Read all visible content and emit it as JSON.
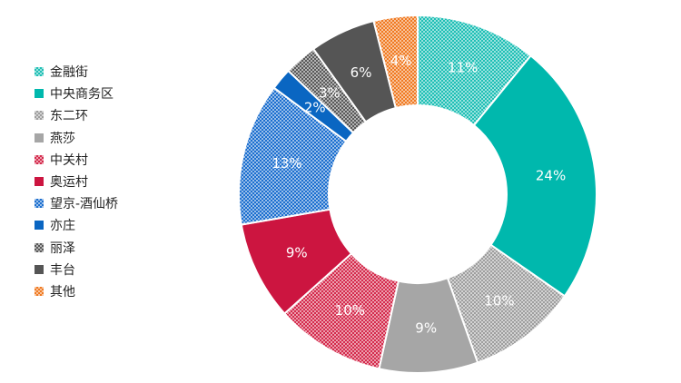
{
  "chart_data": {
    "type": "pie",
    "donut": true,
    "legend_position": "left",
    "categories": [
      "金融街",
      "中央商务区",
      "东二环",
      "燕莎",
      "中关村",
      "奥运村",
      "望京-酒仙桥",
      "亦庄",
      "丽泽",
      "丰台",
      "其他"
    ],
    "values": [
      11,
      24,
      10,
      9,
      10,
      9,
      13,
      2,
      3,
      6,
      4
    ],
    "labels": [
      "11%",
      "24%",
      "10%",
      "9%",
      "10%",
      "9%",
      "13%",
      "2%",
      "3%",
      "6%",
      "4%"
    ],
    "colors": [
      "#1fbfb5",
      "#00b8ad",
      "#9e9e9e",
      "#a6a6a6",
      "#d42a4c",
      "#cc1540",
      "#1c6fcf",
      "#0a66c2",
      "#595959",
      "#555555",
      "#f07a22"
    ],
    "patterns": [
      "check",
      "solid",
      "check",
      "solid",
      "check",
      "solid",
      "check",
      "solid",
      "check",
      "solid",
      "check"
    ]
  }
}
